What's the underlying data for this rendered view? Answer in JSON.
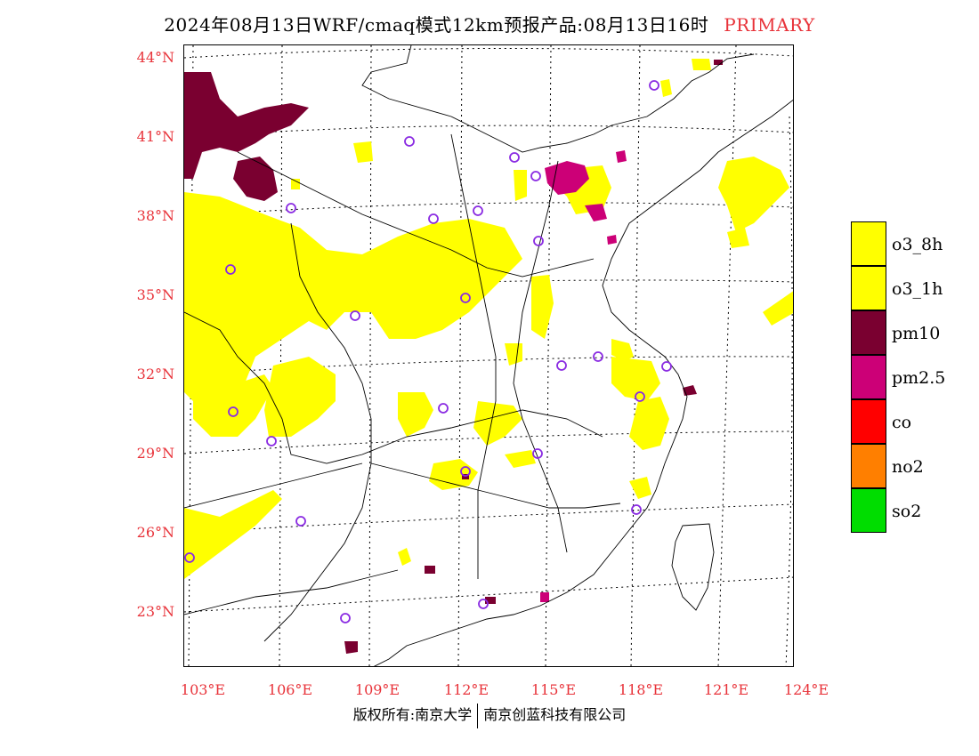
{
  "title": {
    "text": "2024年08月13日WRF/cmaq模式12km预报产品:08月13日16时",
    "tag": "PRIMARY"
  },
  "colors": {
    "label_red": "#e8333a",
    "o3_8h": "#ffff00",
    "o3_1h": "#ffff00",
    "pm10": "#7a0030",
    "pm25": "#cc0077",
    "co": "#ff0000",
    "no2": "#ff7f00",
    "so2": "#00dd00",
    "station_circle": "#8a2be2"
  },
  "latitude_labels": [
    "44°N",
    "41°N",
    "38°N",
    "35°N",
    "32°N",
    "29°N",
    "26°N",
    "23°N"
  ],
  "longitude_labels": [
    "103°E",
    "106°E",
    "109°E",
    "112°E",
    "115°E",
    "118°E",
    "121°E",
    "124°E"
  ],
  "legend": [
    {
      "label": "o3_8h",
      "color": "#ffff00"
    },
    {
      "label": "o3_1h",
      "color": "#ffff00"
    },
    {
      "label": "pm10",
      "color": "#7a0030"
    },
    {
      "label": "pm2.5",
      "color": "#cc0077"
    },
    {
      "label": "co",
      "color": "#ff0000"
    },
    {
      "label": "no2",
      "color": "#ff7f00"
    },
    {
      "label": "so2",
      "color": "#00dd00"
    }
  ],
  "footer": {
    "left": "版权所有:南京大学",
    "right": "南京创蓝科技有限公司"
  }
}
